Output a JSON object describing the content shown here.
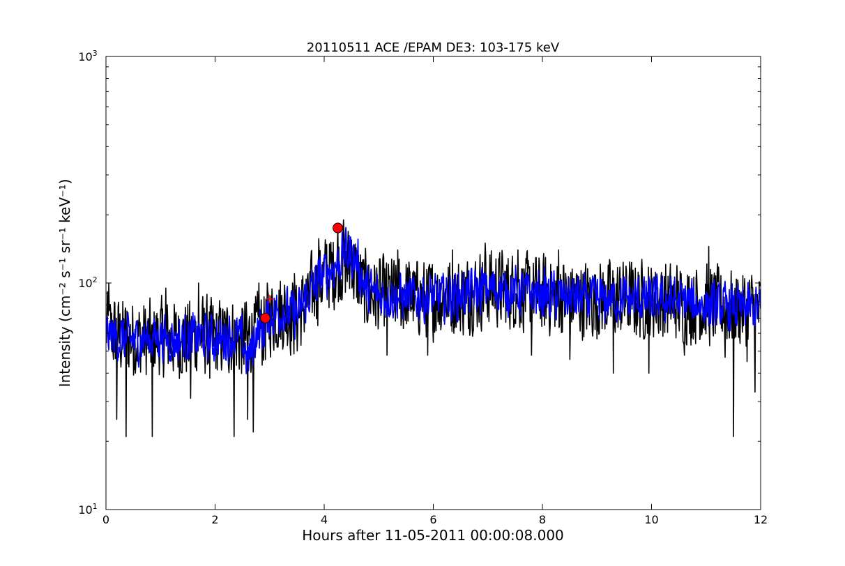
{
  "chart_data": {
    "type": "line",
    "title": "20110511 ACE /EPAM DE3: 103-175 keV",
    "xlabel": "Hours after 11-05-2011 00:00:08.000",
    "ylabel": "Intensity (cm⁻² s⁻¹ sr⁻¹ keV⁻¹)",
    "xlim": [
      0,
      12
    ],
    "ylim": [
      10,
      1000
    ],
    "yscale": "log",
    "grid": false,
    "x_ticks": [
      "0",
      "2",
      "4",
      "6",
      "8",
      "10",
      "12"
    ],
    "y_ticks": [
      {
        "base": "10",
        "exp": "1"
      },
      {
        "base": "10",
        "exp": "2"
      },
      {
        "base": "10",
        "exp": "3"
      }
    ],
    "series": [
      {
        "style": "raw",
        "color": "#000000",
        "x": [
          0.0,
          0.25,
          0.5,
          0.75,
          1.0,
          1.25,
          1.5,
          1.75,
          2.0,
          2.25,
          2.5,
          2.75,
          2.9,
          3.0,
          3.25,
          3.5,
          3.75,
          4.0,
          4.25,
          4.5,
          4.75,
          5.0,
          5.5,
          6.0,
          6.5,
          7.0,
          7.5,
          8.0,
          8.5,
          9.0,
          9.5,
          10.0,
          10.5,
          11.0,
          11.5,
          12.0
        ],
        "values": [
          62,
          58,
          57,
          56,
          58,
          56,
          57,
          59,
          57,
          58,
          57,
          60,
          63,
          72,
          75,
          70,
          90,
          108,
          120,
          118,
          92,
          88,
          87,
          86,
          87,
          96,
          93,
          89,
          86,
          84,
          85,
          84,
          82,
          80,
          78,
          76
        ],
        "spikes": [
          [
            0.05,
            100
          ],
          [
            0.2,
            25
          ],
          [
            0.37,
            21
          ],
          [
            0.85,
            21
          ],
          [
            1.1,
            95
          ],
          [
            1.55,
            31
          ],
          [
            1.7,
            100
          ],
          [
            1.9,
            38
          ],
          [
            2.35,
            21
          ],
          [
            2.6,
            25
          ],
          [
            2.7,
            22
          ],
          [
            2.8,
            100
          ],
          [
            3.45,
            110
          ],
          [
            3.7,
            110
          ],
          [
            3.85,
            120
          ],
          [
            3.9,
            157
          ],
          [
            4.05,
            148
          ],
          [
            4.25,
            180
          ],
          [
            4.35,
            190
          ],
          [
            4.5,
            155
          ],
          [
            5.15,
            48
          ],
          [
            5.35,
            140
          ],
          [
            5.9,
            48
          ],
          [
            6.35,
            140
          ],
          [
            6.95,
            150
          ],
          [
            7.55,
            140
          ],
          [
            7.8,
            48
          ],
          [
            8.3,
            140
          ],
          [
            8.5,
            46
          ],
          [
            9.3,
            40
          ],
          [
            9.95,
            40
          ],
          [
            10.6,
            48
          ],
          [
            11.05,
            145
          ],
          [
            11.35,
            47
          ],
          [
            11.5,
            21
          ],
          [
            11.75,
            45
          ],
          [
            11.9,
            33
          ]
        ]
      },
      {
        "style": "smoothed",
        "color": "#0000ff",
        "x": [
          0.0,
          0.25,
          0.5,
          0.75,
          1.0,
          1.25,
          1.5,
          1.75,
          2.0,
          2.25,
          2.5,
          2.6,
          2.75,
          2.9,
          3.0,
          3.25,
          3.5,
          3.75,
          4.0,
          4.25,
          4.4,
          4.6,
          4.75,
          5.0,
          5.5,
          6.0,
          6.5,
          7.0,
          7.5,
          8.0,
          8.5,
          9.0,
          9.5,
          10.0,
          10.5,
          11.0,
          11.5,
          12.0
        ],
        "values": [
          60,
          57,
          56,
          57,
          58,
          56,
          57,
          58,
          56,
          58,
          57,
          45,
          60,
          63,
          72,
          76,
          72,
          92,
          110,
          122,
          138,
          125,
          95,
          88,
          87,
          86,
          88,
          95,
          92,
          89,
          86,
          84,
          85,
          84,
          83,
          80,
          78,
          76
        ]
      }
    ],
    "markers": [
      {
        "x": 2.92,
        "y": 70,
        "shape": "circle",
        "color": "#ff0000"
      },
      {
        "x": 4.25,
        "y": 175,
        "shape": "circle",
        "color": "#ff0000"
      },
      {
        "x": 3.0,
        "y": 85,
        "shape": "plus",
        "color": "#ff0000"
      }
    ]
  }
}
